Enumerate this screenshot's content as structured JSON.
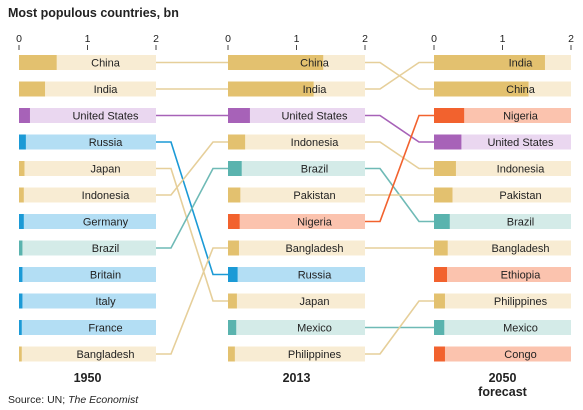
{
  "title": "Most populous countries, bn",
  "source_prefix": "Source: UN; ",
  "source_italic": "The Economist",
  "chart_data": {
    "type": "bar",
    "title": "Most populous countries, bn",
    "xlim": [
      0,
      2
    ],
    "ticks": [
      "0",
      "1",
      "2"
    ],
    "groups": [
      {
        "label": "1950",
        "sublabel": "",
        "countries": [
          {
            "name": "China",
            "value": 0.55
          },
          {
            "name": "India",
            "value": 0.38
          },
          {
            "name": "United States",
            "value": 0.16
          },
          {
            "name": "Russia",
            "value": 0.1
          },
          {
            "name": "Japan",
            "value": 0.08
          },
          {
            "name": "Indonesia",
            "value": 0.07
          },
          {
            "name": "Germany",
            "value": 0.07
          },
          {
            "name": "Brazil",
            "value": 0.05
          },
          {
            "name": "Britain",
            "value": 0.05
          },
          {
            "name": "Italy",
            "value": 0.05
          },
          {
            "name": "France",
            "value": 0.04
          },
          {
            "name": "Bangladesh",
            "value": 0.04
          }
        ]
      },
      {
        "label": "2013",
        "sublabel": "",
        "countries": [
          {
            "name": "China",
            "value": 1.39
          },
          {
            "name": "India",
            "value": 1.25
          },
          {
            "name": "United States",
            "value": 0.32
          },
          {
            "name": "Indonesia",
            "value": 0.25
          },
          {
            "name": "Brazil",
            "value": 0.2
          },
          {
            "name": "Pakistan",
            "value": 0.18
          },
          {
            "name": "Nigeria",
            "value": 0.17
          },
          {
            "name": "Bangladesh",
            "value": 0.16
          },
          {
            "name": "Russia",
            "value": 0.14
          },
          {
            "name": "Japan",
            "value": 0.13
          },
          {
            "name": "Mexico",
            "value": 0.12
          },
          {
            "name": "Philippines",
            "value": 0.1
          }
        ]
      },
      {
        "label": "2050",
        "sublabel": "forecast",
        "countries": [
          {
            "name": "India",
            "value": 1.62
          },
          {
            "name": "China",
            "value": 1.38
          },
          {
            "name": "Nigeria",
            "value": 0.44
          },
          {
            "name": "United States",
            "value": 0.4
          },
          {
            "name": "Indonesia",
            "value": 0.32
          },
          {
            "name": "Pakistan",
            "value": 0.27
          },
          {
            "name": "Brazil",
            "value": 0.23
          },
          {
            "name": "Bangladesh",
            "value": 0.2
          },
          {
            "name": "Ethiopia",
            "value": 0.19
          },
          {
            "name": "Philippines",
            "value": 0.16
          },
          {
            "name": "Mexico",
            "value": 0.15
          },
          {
            "name": "Congo",
            "value": 0.16
          }
        ]
      }
    ],
    "colors": {
      "China": "#e3c16f",
      "India": "#e3c16f",
      "Indonesia": "#e3c16f",
      "Japan": "#e3c16f",
      "Bangladesh": "#e3c16f",
      "Pakistan": "#e3c16f",
      "Philippines": "#e3c16f",
      "United States": "#a762b8",
      "Russia": "#1b9ad6",
      "Germany": "#1b9ad6",
      "Britain": "#1b9ad6",
      "Italy": "#1b9ad6",
      "France": "#1b9ad6",
      "Brazil": "#5ab3ae",
      "Mexico": "#5ab3ae",
      "Nigeria": "#f2622e",
      "Ethiopia": "#f2622e",
      "Congo": "#f2622e"
    },
    "light_colors": {
      "China": "#f8ecd3",
      "India": "#f8ecd3",
      "Indonesia": "#f8ecd3",
      "Japan": "#f8ecd3",
      "Bangladesh": "#f8ecd3",
      "Pakistan": "#f8ecd3",
      "Philippines": "#f8ecd3",
      "United States": "#ead7f0",
      "Russia": "#b3def4",
      "Germany": "#b3def4",
      "Britain": "#b3def4",
      "Italy": "#b3def4",
      "France": "#b3def4",
      "Brazil": "#d4ebe8",
      "Mexico": "#d4ebe8",
      "Nigeria": "#fbc3ae",
      "Ethiopia": "#fbc3ae",
      "Congo": "#fbc3ae"
    },
    "line_colors": {
      "China": "#e6cf9a",
      "India": "#e6cf9a",
      "Indonesia": "#e6cf9a",
      "Japan": "#e6cf9a",
      "Bangladesh": "#e6cf9a",
      "Pakistan": "#e6cf9a",
      "Philippines": "#e6cf9a",
      "United States": "#a762b8",
      "Russia": "#1b9ad6",
      "Brazil": "#6fbab6",
      "Mexico": "#6fbab6",
      "Nigeria": "#f2622e"
    }
  }
}
